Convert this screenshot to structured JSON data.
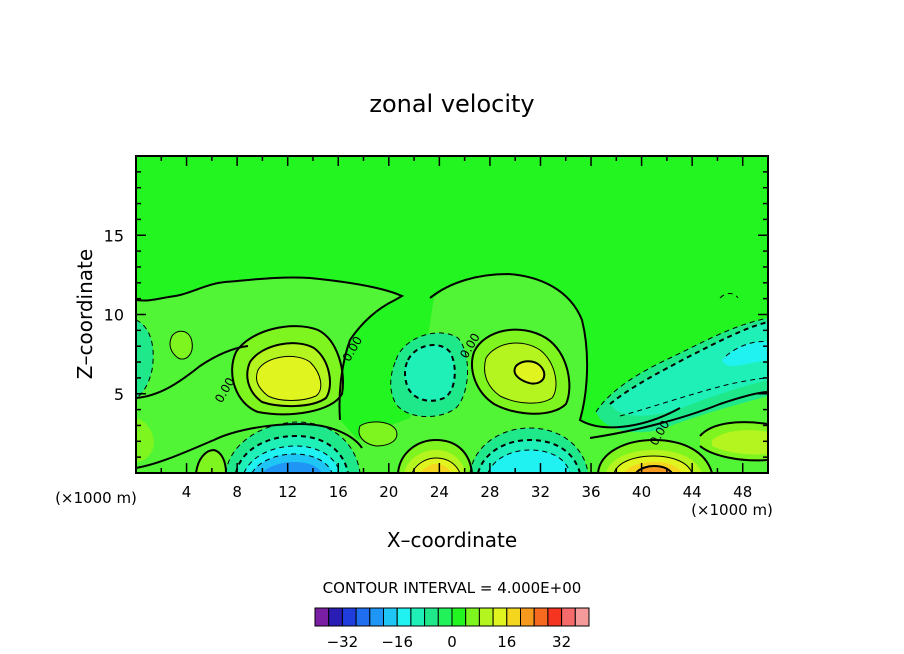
{
  "chart_data": {
    "type": "heatmap",
    "title": "zonal velocity",
    "xlabel": "X–coordinate",
    "ylabel": "Z–coordinate",
    "x_units_left": "(×1000 m)",
    "x_units_right": "(×1000 m)",
    "xlim": [
      0,
      50
    ],
    "ylim": [
      0,
      20
    ],
    "x_ticks": [
      4,
      8,
      12,
      16,
      20,
      24,
      28,
      32,
      36,
      40,
      44,
      48
    ],
    "y_ticks": [
      5,
      10,
      15
    ],
    "contour_interval_text": "CONTOUR INTERVAL = 4.000E+00",
    "contour_labels": [
      {
        "text": "0.00",
        "x": 7.3,
        "y": 5.1
      },
      {
        "text": "0.00",
        "x": 17.4,
        "y": 7.7
      },
      {
        "text": "0.00",
        "x": 26.7,
        "y": 7.9
      },
      {
        "text": "0.00",
        "x": 41.7,
        "y": 2.4
      }
    ],
    "colorbar": {
      "levels": [
        -36,
        -32,
        -28,
        -24,
        -20,
        -16,
        -12,
        -8,
        -4,
        0,
        4,
        8,
        12,
        16,
        20,
        24,
        28,
        32,
        36
      ],
      "tick_labels": [
        "−32",
        "−16",
        "0",
        "16",
        "32"
      ],
      "tick_values": [
        -32,
        -16,
        0,
        16,
        32
      ],
      "colors": [
        "#7a1fa3",
        "#2a1db5",
        "#1f3ddc",
        "#1f6ef0",
        "#1f96f5",
        "#1fc6f5",
        "#1ff2f0",
        "#1ff0b8",
        "#1fe88a",
        "#22f25a",
        "#22f51f",
        "#7ef51f",
        "#b4f51f",
        "#e0f51f",
        "#f5d61f",
        "#f59a1f",
        "#f56a1f",
        "#f5351f",
        "#f56a6a",
        "#f59a9a"
      ]
    },
    "background_value": 2,
    "features": [
      {
        "sign": "positive",
        "x": 12.5,
        "y": 6.2,
        "peak": 14
      },
      {
        "sign": "positive",
        "x": 30.5,
        "y": 6.3,
        "peak": 8
      },
      {
        "sign": "positive",
        "x": 41,
        "y": 0.4,
        "peak": 26
      },
      {
        "sign": "positive",
        "x": 23,
        "y": 0.3,
        "peak": 14
      },
      {
        "sign": "positive",
        "x": 47,
        "y": 2.3,
        "peak": 8
      },
      {
        "sign": "negative",
        "x": 12,
        "y": 0.5,
        "peak": -20
      },
      {
        "sign": "negative",
        "x": 31,
        "y": 0.5,
        "peak": -14
      },
      {
        "sign": "negative",
        "x": 23,
        "y": 6.5,
        "peak": -9
      },
      {
        "sign": "negative",
        "x": 47,
        "y": 7.8,
        "peak": -10
      },
      {
        "sign": "negative",
        "x": 41,
        "y": 5.0,
        "peak": -6
      },
      {
        "sign": "negative",
        "x": 0.6,
        "y": 7.5,
        "peak": -5
      }
    ]
  }
}
